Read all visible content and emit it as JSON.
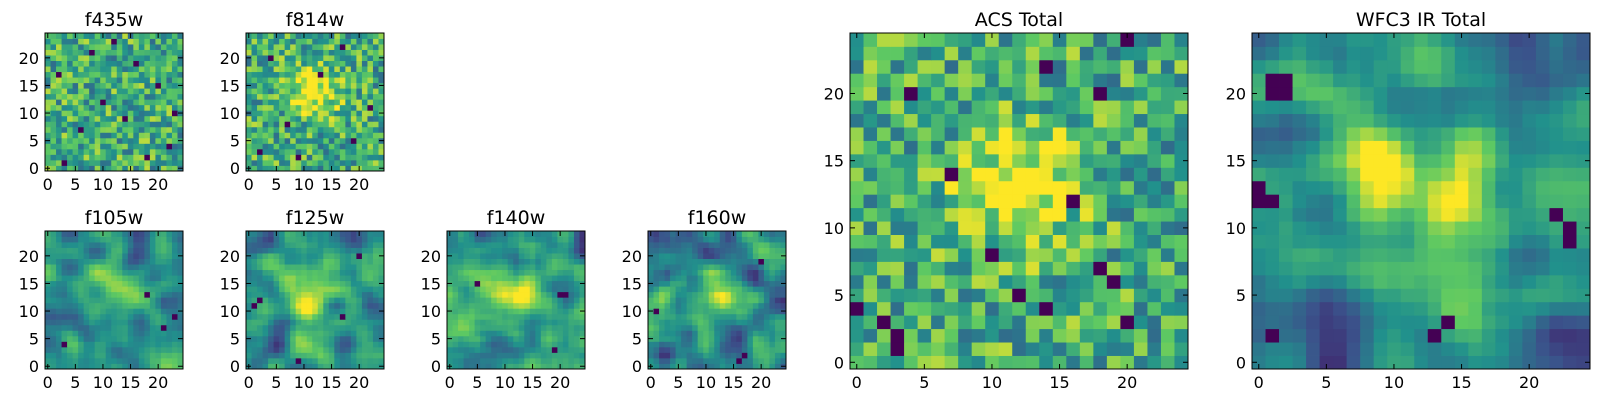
{
  "figure": {
    "colormap": "viridis",
    "colormap_stops": [
      "#440154",
      "#3b528b",
      "#21918c",
      "#5ec962",
      "#fde725"
    ],
    "axis_color": "#000000"
  },
  "chart_data": [
    {
      "type": "heatmap",
      "title": "f435w",
      "grid_size": [
        25,
        25
      ],
      "xlim": [
        -0.5,
        24.5
      ],
      "ylim": [
        -0.5,
        24.5
      ],
      "xticks": [
        0,
        5,
        10,
        15,
        20
      ],
      "yticks": [
        0,
        5,
        10,
        15,
        20
      ],
      "pattern": "noise",
      "seed": 11,
      "peak": null,
      "dark_pixels": [
        [
          3,
          1
        ],
        [
          18,
          2
        ],
        [
          22,
          4
        ],
        [
          6,
          7
        ],
        [
          14,
          9
        ],
        [
          10,
          12
        ],
        [
          20,
          15
        ],
        [
          2,
          17
        ],
        [
          16,
          19
        ],
        [
          8,
          21
        ],
        [
          12,
          23
        ],
        [
          23,
          10
        ]
      ]
    },
    {
      "type": "heatmap",
      "title": "f814w",
      "grid_size": [
        25,
        25
      ],
      "xlim": [
        -0.5,
        24.5
      ],
      "ylim": [
        -0.5,
        24.5
      ],
      "xticks": [
        0,
        5,
        10,
        15,
        20
      ],
      "yticks": [
        0,
        5,
        10,
        15,
        20
      ],
      "pattern": "noise",
      "seed": 23,
      "peak": [
        12,
        14
      ],
      "dark_pixels": [
        [
          2,
          3
        ],
        [
          19,
          5
        ],
        [
          7,
          8
        ],
        [
          22,
          11
        ],
        [
          13,
          17
        ],
        [
          4,
          20
        ],
        [
          17,
          22
        ],
        [
          9,
          2
        ]
      ]
    },
    {
      "type": "heatmap",
      "title": "f105w",
      "grid_size": [
        25,
        25
      ],
      "xlim": [
        -0.5,
        24.5
      ],
      "ylim": [
        -0.5,
        24.5
      ],
      "xticks": [
        0,
        5,
        10,
        15,
        20
      ],
      "yticks": [
        0,
        5,
        10,
        15,
        20
      ],
      "pattern": "smooth",
      "seed": 37,
      "peak": [
        11,
        14
      ],
      "dark_pixels": [
        [
          21,
          7
        ],
        [
          23,
          9
        ],
        [
          18,
          13
        ],
        [
          3,
          4
        ]
      ]
    },
    {
      "type": "heatmap",
      "title": "f125w",
      "grid_size": [
        25,
        25
      ],
      "xlim": [
        -0.5,
        24.5
      ],
      "ylim": [
        -0.5,
        24.5
      ],
      "xticks": [
        0,
        5,
        10,
        15,
        20
      ],
      "yticks": [
        0,
        5,
        10,
        15,
        20
      ],
      "pattern": "smooth",
      "seed": 41,
      "peak": [
        10,
        12
      ],
      "dark_pixels": [
        [
          1,
          11
        ],
        [
          2,
          12
        ],
        [
          17,
          9
        ],
        [
          9,
          1
        ],
        [
          20,
          20
        ]
      ]
    },
    {
      "type": "heatmap",
      "title": "f140w",
      "grid_size": [
        25,
        25
      ],
      "xlim": [
        -0.5,
        24.5
      ],
      "ylim": [
        -0.5,
        24.5
      ],
      "xticks": [
        0,
        5,
        10,
        15,
        20
      ],
      "yticks": [
        0,
        5,
        10,
        15,
        20
      ],
      "pattern": "smooth",
      "seed": 53,
      "peak": [
        13,
        12
      ],
      "dark_pixels": [
        [
          20,
          13
        ],
        [
          21,
          13
        ],
        [
          19,
          3
        ],
        [
          5,
          15
        ]
      ]
    },
    {
      "type": "heatmap",
      "title": "f160w",
      "grid_size": [
        25,
        25
      ],
      "xlim": [
        -0.5,
        24.5
      ],
      "ylim": [
        -0.5,
        24.5
      ],
      "xticks": [
        0,
        5,
        10,
        15,
        20
      ],
      "yticks": [
        0,
        5,
        10,
        15,
        20
      ],
      "pattern": "smooth",
      "seed": 67,
      "peak": [
        11,
        12
      ],
      "dark_pixels": [
        [
          16,
          1
        ],
        [
          17,
          2
        ],
        [
          1,
          10
        ],
        [
          20,
          19
        ]
      ]
    },
    {
      "type": "heatmap",
      "title": "ACS Total",
      "grid_size": [
        25,
        25
      ],
      "xlim": [
        -0.5,
        24.5
      ],
      "ylim": [
        -0.5,
        24.5
      ],
      "xticks": [
        0,
        5,
        10,
        15,
        20
      ],
      "yticks": [
        0,
        5,
        10,
        15,
        20
      ],
      "pattern": "noise",
      "seed": 79,
      "peak": [
        12,
        13
      ],
      "dark_pixels": [
        [
          3,
          1
        ],
        [
          3,
          2
        ],
        [
          0,
          4
        ],
        [
          19,
          6
        ],
        [
          14,
          4
        ],
        [
          10,
          8
        ],
        [
          20,
          3
        ],
        [
          18,
          7
        ],
        [
          7,
          14
        ],
        [
          16,
          12
        ],
        [
          4,
          20
        ],
        [
          14,
          22
        ],
        [
          18,
          20
        ],
        [
          20,
          24
        ],
        [
          12,
          5
        ],
        [
          2,
          3
        ]
      ]
    },
    {
      "type": "heatmap",
      "title": "WFC3 IR Total",
      "grid_size": [
        25,
        25
      ],
      "xlim": [
        -0.5,
        24.5
      ],
      "ylim": [
        -0.5,
        24.5
      ],
      "xticks": [
        0,
        5,
        10,
        15,
        20
      ],
      "yticks": [
        0,
        5,
        10,
        15,
        20
      ],
      "pattern": "smooth",
      "seed": 97,
      "peak": [
        11,
        13
      ],
      "dark_pixels": [
        [
          1,
          20
        ],
        [
          2,
          20
        ],
        [
          1,
          21
        ],
        [
          2,
          21
        ],
        [
          0,
          12
        ],
        [
          0,
          13
        ],
        [
          1,
          12
        ],
        [
          22,
          11
        ],
        [
          23,
          10
        ],
        [
          23,
          9
        ],
        [
          14,
          3
        ],
        [
          13,
          2
        ],
        [
          1,
          2
        ]
      ]
    }
  ]
}
